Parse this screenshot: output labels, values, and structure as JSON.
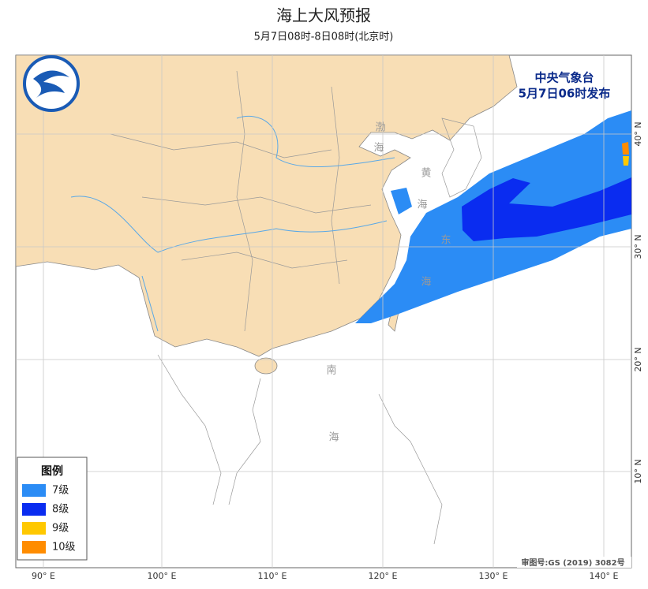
{
  "header": {
    "title": "海上大风预报",
    "subtitle": "5月7日08时-8日08时(北京时)"
  },
  "issuer": {
    "name": "中央气象台",
    "time": "5月7日06时发布"
  },
  "legend": {
    "title": "图例",
    "items": [
      {
        "label": "7级",
        "color": "#2b8cf5"
      },
      {
        "label": "8级",
        "color": "#0a2cf0"
      },
      {
        "label": "9级",
        "color": "#ffc800"
      },
      {
        "label": "10级",
        "color": "#ff8c00"
      }
    ]
  },
  "axes": {
    "lon_labels": [
      "90° E",
      "100° E",
      "110° E",
      "120° E",
      "130° E",
      "140° E"
    ],
    "lat_labels": [
      "40° N",
      "30° N",
      "20° N",
      "10° N"
    ]
  },
  "sea_labels": [
    "渤",
    "海",
    "黄",
    "海",
    "东",
    "海",
    "南",
    "海"
  ],
  "footer": {
    "review_number": "审图号:GS (2019) 3082号"
  }
}
